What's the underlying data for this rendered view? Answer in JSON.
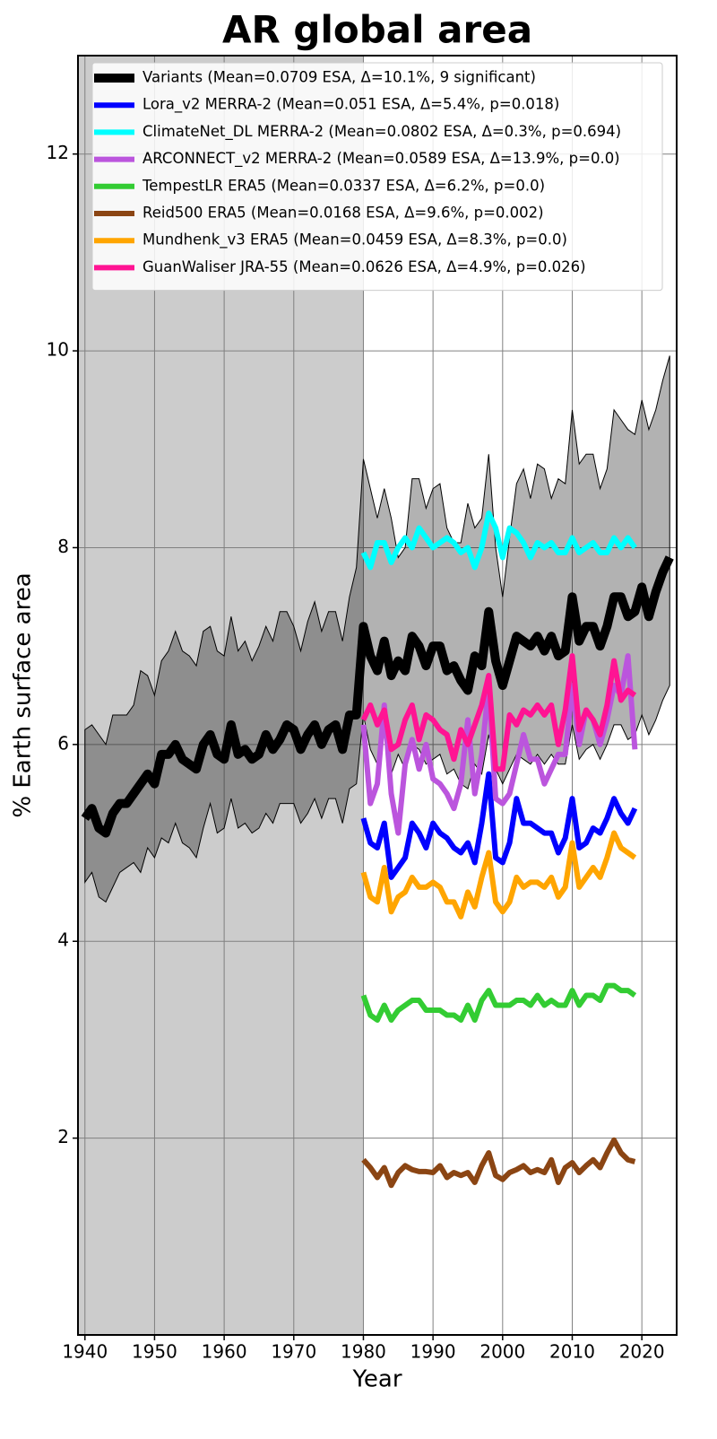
{
  "chart_data": {
    "type": "line",
    "title": "AR global area",
    "x_label": "Year",
    "y_label": "% Earth surface area",
    "xlim": [
      1939,
      2025
    ],
    "ylim": [
      0,
      13
    ],
    "xticks": [
      1940,
      1950,
      1960,
      1970,
      1980,
      1990,
      2000,
      2010,
      2020
    ],
    "yticks": [
      2,
      4,
      6,
      8,
      10,
      12
    ],
    "grid": true,
    "legend": "upper left",
    "shaded_span": [
      1939,
      1980
    ],
    "shaded_color": "#cccccc",
    "band": {
      "color": "#000000",
      "upper": [
        6.15,
        6.2,
        6.1,
        6.0,
        6.3,
        6.3,
        6.3,
        6.4,
        6.75,
        6.7,
        6.5,
        6.85,
        6.95,
        7.15,
        6.95,
        6.9,
        6.8,
        7.15,
        7.2,
        6.95,
        6.9,
        7.3,
        6.95,
        7.05,
        6.85,
        7.0,
        7.2,
        7.05,
        7.35,
        7.35,
        7.2,
        6.95,
        7.25,
        7.45,
        7.15,
        7.35,
        7.35,
        7.05,
        7.5,
        7.8,
        8.9,
        8.6,
        8.3,
        8.6,
        8.3,
        7.9,
        8.0,
        8.7,
        8.7,
        8.4,
        8.6,
        8.65,
        8.2,
        8.05,
        8.05,
        8.45,
        8.2,
        8.3,
        8.95,
        8.0,
        7.5,
        8.1,
        8.65,
        8.8,
        8.5,
        8.85,
        8.8,
        8.5,
        8.7,
        8.65,
        9.4,
        8.85,
        8.95,
        8.95,
        8.6,
        8.8,
        9.4,
        9.3,
        9.2,
        9.15,
        9.5,
        9.2,
        9.4,
        9.7,
        9.95
      ],
      "lower": [
        4.6,
        4.7,
        4.45,
        4.4,
        4.55,
        4.7,
        4.75,
        4.8,
        4.7,
        4.95,
        4.85,
        5.05,
        5.0,
        5.2,
        5.0,
        4.95,
        4.85,
        5.15,
        5.4,
        5.1,
        5.15,
        5.45,
        5.15,
        5.2,
        5.1,
        5.15,
        5.3,
        5.2,
        5.4,
        5.4,
        5.4,
        5.2,
        5.3,
        5.45,
        5.25,
        5.45,
        5.45,
        5.2,
        5.55,
        5.6,
        6.3,
        5.95,
        5.8,
        6.1,
        5.7,
        5.9,
        5.75,
        6.0,
        5.95,
        5.8,
        5.85,
        5.9,
        5.7,
        5.75,
        5.6,
        5.55,
        5.8,
        5.7,
        6.1,
        5.75,
        5.6,
        5.75,
        5.9,
        5.85,
        5.8,
        5.9,
        5.8,
        5.9,
        5.8,
        5.8,
        6.2,
        5.85,
        5.95,
        6.0,
        5.85,
        6.0,
        6.2,
        6.2,
        6.05,
        6.1,
        6.3,
        6.1,
        6.25,
        6.45,
        6.6
      ]
    },
    "x": [
      1940,
      1941,
      1942,
      1943,
      1944,
      1945,
      1946,
      1947,
      1948,
      1949,
      1950,
      1951,
      1952,
      1953,
      1954,
      1955,
      1956,
      1957,
      1958,
      1959,
      1960,
      1961,
      1962,
      1963,
      1964,
      1965,
      1966,
      1967,
      1968,
      1969,
      1970,
      1971,
      1972,
      1973,
      1974,
      1975,
      1976,
      1977,
      1978,
      1979,
      1980,
      1981,
      1982,
      1983,
      1984,
      1985,
      1986,
      1987,
      1988,
      1989,
      1990,
      1991,
      1992,
      1993,
      1994,
      1995,
      1996,
      1997,
      1998,
      1999,
      2000,
      2001,
      2002,
      2003,
      2004,
      2005,
      2006,
      2007,
      2008,
      2009,
      2010,
      2011,
      2012,
      2013,
      2014,
      2015,
      2016,
      2017,
      2018,
      2019,
      2020,
      2021,
      2022,
      2023,
      2024
    ],
    "series": [
      {
        "name": "Variants (Mean=0.0709 ESA, Δ=10.1%, 9 significant)",
        "color": "#000000",
        "width": 10,
        "values": [
          5.25,
          5.35,
          5.15,
          5.1,
          5.3,
          5.4,
          5.4,
          5.5,
          5.6,
          5.7,
          5.6,
          5.9,
          5.9,
          6.0,
          5.85,
          5.8,
          5.75,
          6.0,
          6.1,
          5.9,
          5.85,
          6.2,
          5.9,
          5.95,
          5.85,
          5.9,
          6.1,
          5.95,
          6.05,
          6.2,
          6.15,
          5.95,
          6.1,
          6.2,
          6.0,
          6.15,
          6.2,
          5.95,
          6.3,
          6.3,
          7.2,
          6.9,
          6.75,
          7.05,
          6.7,
          6.85,
          6.75,
          7.1,
          7.0,
          6.8,
          7.0,
          7.0,
          6.75,
          6.8,
          6.65,
          6.55,
          6.9,
          6.8,
          7.35,
          6.85,
          6.6,
          6.85,
          7.1,
          7.05,
          7.0,
          7.1,
          6.95,
          7.1,
          6.9,
          6.95,
          7.5,
          7.05,
          7.2,
          7.2,
          7.0,
          7.2,
          7.5,
          7.5,
          7.3,
          7.35,
          7.6,
          7.3,
          7.55,
          7.75,
          7.9
        ]
      },
      {
        "name": "Lora_v2 MERRA-2 (Mean=0.051 ESA, Δ=5.4%, p=0.018)",
        "color": "#0000ff",
        "width": 6,
        "values": [
          null,
          null,
          null,
          null,
          null,
          null,
          null,
          null,
          null,
          null,
          null,
          null,
          null,
          null,
          null,
          null,
          null,
          null,
          null,
          null,
          null,
          null,
          null,
          null,
          null,
          null,
          null,
          null,
          null,
          null,
          null,
          null,
          null,
          null,
          null,
          null,
          null,
          null,
          null,
          null,
          5.25,
          5.0,
          4.95,
          5.2,
          4.65,
          4.75,
          4.85,
          5.2,
          5.1,
          4.95,
          5.2,
          5.1,
          5.05,
          4.95,
          4.9,
          5.0,
          4.8,
          5.2,
          5.7,
          4.85,
          4.8,
          5.0,
          5.45,
          5.2,
          5.2,
          5.15,
          5.1,
          5.1,
          4.9,
          5.05,
          5.45,
          4.95,
          5.0,
          5.15,
          5.1,
          5.25,
          5.45,
          5.3,
          5.2,
          5.35,
          null,
          null,
          null,
          null,
          null
        ]
      },
      {
        "name": "ClimateNet_DL MERRA-2 (Mean=0.0802 ESA, Δ=0.3%, p=0.694)",
        "color": "#00ffff",
        "width": 6,
        "values": [
          null,
          null,
          null,
          null,
          null,
          null,
          null,
          null,
          null,
          null,
          null,
          null,
          null,
          null,
          null,
          null,
          null,
          null,
          null,
          null,
          null,
          null,
          null,
          null,
          null,
          null,
          null,
          null,
          null,
          null,
          null,
          null,
          null,
          null,
          null,
          null,
          null,
          null,
          null,
          null,
          7.95,
          7.8,
          8.05,
          8.05,
          7.85,
          8.0,
          8.1,
          8.0,
          8.2,
          8.1,
          8.0,
          8.05,
          8.1,
          8.05,
          7.95,
          8.0,
          7.8,
          8.0,
          8.35,
          8.2,
          7.9,
          8.2,
          8.15,
          8.05,
          7.9,
          8.05,
          8.0,
          8.05,
          7.95,
          7.95,
          8.1,
          7.95,
          8.0,
          8.05,
          7.95,
          7.95,
          8.1,
          8.0,
          8.1,
          8.0,
          null,
          null,
          null,
          null,
          null
        ]
      },
      {
        "name": "ARCONNECT_v2 MERRA-2 (Mean=0.0589 ESA, Δ=13.9%, p=0.0)",
        "color": "#bb55dd",
        "width": 6,
        "values": [
          null,
          null,
          null,
          null,
          null,
          null,
          null,
          null,
          null,
          null,
          null,
          null,
          null,
          null,
          null,
          null,
          null,
          null,
          null,
          null,
          null,
          null,
          null,
          null,
          null,
          null,
          null,
          null,
          null,
          null,
          null,
          null,
          null,
          null,
          null,
          null,
          null,
          null,
          null,
          null,
          6.2,
          5.4,
          5.6,
          6.4,
          5.5,
          5.1,
          5.8,
          6.05,
          5.75,
          6.0,
          5.65,
          5.6,
          5.5,
          5.35,
          5.6,
          6.25,
          5.5,
          5.9,
          6.6,
          5.45,
          5.4,
          5.5,
          5.8,
          6.1,
          5.85,
          5.85,
          5.6,
          5.75,
          5.9,
          5.9,
          6.6,
          6.0,
          6.35,
          6.25,
          6.0,
          6.25,
          6.6,
          6.5,
          6.9,
          5.95,
          null,
          null,
          null,
          null,
          null
        ]
      },
      {
        "name": "TempestLR ERA5 (Mean=0.0337 ESA, Δ=6.2%, p=0.0)",
        "color": "#33cc33",
        "width": 6,
        "values": [
          null,
          null,
          null,
          null,
          null,
          null,
          null,
          null,
          null,
          null,
          null,
          null,
          null,
          null,
          null,
          null,
          null,
          null,
          null,
          null,
          null,
          null,
          null,
          null,
          null,
          null,
          null,
          null,
          null,
          null,
          null,
          null,
          null,
          null,
          null,
          null,
          null,
          null,
          null,
          null,
          3.45,
          3.25,
          3.2,
          3.35,
          3.2,
          3.3,
          3.35,
          3.4,
          3.4,
          3.3,
          3.3,
          3.3,
          3.25,
          3.25,
          3.2,
          3.35,
          3.2,
          3.4,
          3.5,
          3.35,
          3.35,
          3.35,
          3.4,
          3.4,
          3.35,
          3.45,
          3.35,
          3.4,
          3.35,
          3.35,
          3.5,
          3.35,
          3.45,
          3.45,
          3.4,
          3.55,
          3.55,
          3.5,
          3.5,
          3.45,
          null,
          null,
          null,
          null,
          null
        ]
      },
      {
        "name": "Reid500 ERA5 (Mean=0.0168 ESA, Δ=9.6%, p=0.002)",
        "color": "#8b4513",
        "width": 6,
        "values": [
          null,
          null,
          null,
          null,
          null,
          null,
          null,
          null,
          null,
          null,
          null,
          null,
          null,
          null,
          null,
          null,
          null,
          null,
          null,
          null,
          null,
          null,
          null,
          null,
          null,
          null,
          null,
          null,
          null,
          null,
          null,
          null,
          null,
          null,
          null,
          null,
          null,
          null,
          null,
          null,
          1.78,
          1.7,
          1.6,
          1.7,
          1.52,
          1.65,
          1.72,
          1.68,
          1.66,
          1.66,
          1.65,
          1.72,
          1.6,
          1.65,
          1.62,
          1.65,
          1.55,
          1.72,
          1.85,
          1.62,
          1.58,
          1.65,
          1.68,
          1.72,
          1.65,
          1.68,
          1.65,
          1.78,
          1.55,
          1.7,
          1.75,
          1.65,
          1.72,
          1.78,
          1.7,
          1.85,
          1.98,
          1.85,
          1.78,
          1.76,
          null,
          null,
          null,
          null,
          null
        ]
      },
      {
        "name": "Mundhenk_v3 ERA5 (Mean=0.0459 ESA, Δ=8.3%, p=0.0)",
        "color": "#ffa500",
        "width": 6,
        "values": [
          null,
          null,
          null,
          null,
          null,
          null,
          null,
          null,
          null,
          null,
          null,
          null,
          null,
          null,
          null,
          null,
          null,
          null,
          null,
          null,
          null,
          null,
          null,
          null,
          null,
          null,
          null,
          null,
          null,
          null,
          null,
          null,
          null,
          null,
          null,
          null,
          null,
          null,
          null,
          null,
          4.7,
          4.45,
          4.4,
          4.75,
          4.3,
          4.45,
          4.5,
          4.65,
          4.55,
          4.55,
          4.6,
          4.55,
          4.4,
          4.4,
          4.25,
          4.5,
          4.35,
          4.65,
          4.9,
          4.4,
          4.3,
          4.4,
          4.65,
          4.55,
          4.6,
          4.6,
          4.55,
          4.65,
          4.45,
          4.55,
          5.0,
          4.55,
          4.65,
          4.75,
          4.65,
          4.85,
          5.1,
          4.95,
          4.9,
          4.85,
          null,
          null,
          null,
          null,
          null
        ]
      },
      {
        "name": "GuanWaliser JRA-55 (Mean=0.0626 ESA, Δ=4.9%, p=0.026)",
        "color": "#ff1493",
        "width": 6,
        "values": [
          null,
          null,
          null,
          null,
          null,
          null,
          null,
          null,
          null,
          null,
          null,
          null,
          null,
          null,
          null,
          null,
          null,
          null,
          null,
          null,
          null,
          null,
          null,
          null,
          null,
          null,
          null,
          null,
          null,
          null,
          null,
          null,
          null,
          null,
          null,
          null,
          null,
          null,
          null,
          null,
          6.25,
          6.4,
          6.2,
          6.35,
          5.95,
          6.0,
          6.25,
          6.4,
          6.05,
          6.3,
          6.25,
          6.15,
          6.1,
          5.85,
          6.15,
          6.0,
          6.2,
          6.4,
          6.7,
          5.75,
          5.75,
          6.3,
          6.2,
          6.35,
          6.3,
          6.4,
          6.3,
          6.4,
          6.0,
          6.35,
          6.9,
          6.15,
          6.35,
          6.25,
          6.1,
          6.4,
          6.85,
          6.45,
          6.55,
          6.5,
          null,
          null,
          null,
          null,
          null
        ]
      }
    ]
  }
}
